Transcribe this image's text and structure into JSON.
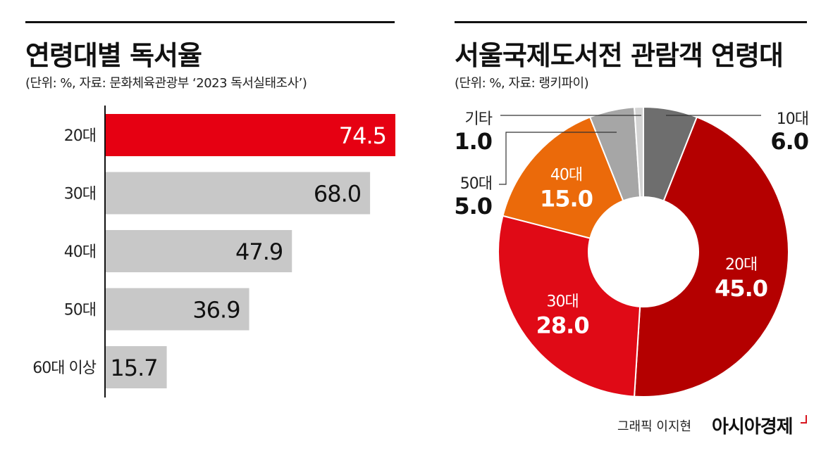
{
  "chart_data": [
    {
      "type": "bar",
      "orientation": "horizontal",
      "title": "연령대별 독서율",
      "subtitle": "(단위: %, 자료: 문화체육관광부 ‘2023 독서실태조사’)",
      "categories": [
        "20대",
        "30대",
        "40대",
        "50대",
        "60대 이상"
      ],
      "values": [
        74.5,
        68.0,
        47.9,
        36.9,
        15.7
      ],
      "value_labels": [
        "74.5",
        "68.0",
        "47.9",
        "36.9",
        "15.7"
      ],
      "colors": [
        "#e60012",
        "#c8c8c8",
        "#c8c8c8",
        "#c8c8c8",
        "#c8c8c8"
      ],
      "xlim": [
        0,
        74.5
      ],
      "grid": false
    },
    {
      "type": "pie",
      "donut": true,
      "title": "서울국제도서전 관람객 연령대",
      "subtitle": "(단위: %, 자료: 랭키파이)",
      "slices": [
        {
          "label": "10대",
          "value": 6.0,
          "value_label": "6.0",
          "color": "#6e6e6e"
        },
        {
          "label": "20대",
          "value": 45.0,
          "value_label": "45.0",
          "color": "#b40000"
        },
        {
          "label": "30대",
          "value": 28.0,
          "value_label": "28.0",
          "color": "#e00a16"
        },
        {
          "label": "40대",
          "value": 15.0,
          "value_label": "15.0",
          "color": "#eb6a0a"
        },
        {
          "label": "50대",
          "value": 5.0,
          "value_label": "5.0",
          "color": "#a6a6a6"
        },
        {
          "label": "기타",
          "value": 1.0,
          "value_label": "1.0",
          "color": "#d4d4d4"
        }
      ]
    }
  ],
  "footer": {
    "credit": "그래픽 이지현",
    "brand": "아시아경제"
  }
}
